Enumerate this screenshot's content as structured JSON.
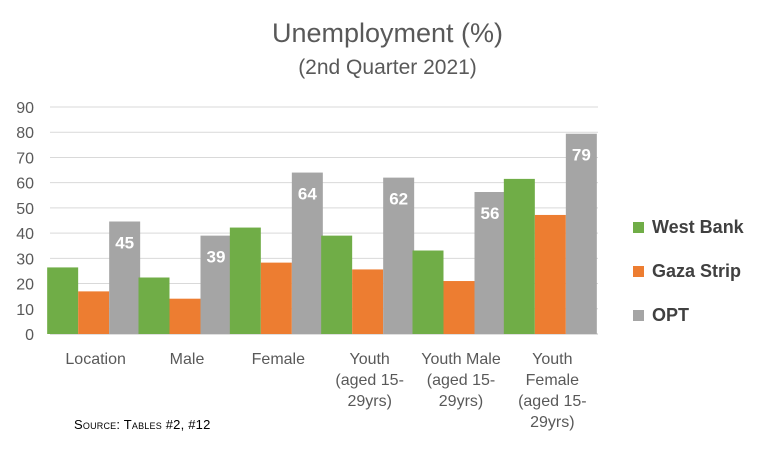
{
  "title": "Unemployment (%)",
  "subtitle": "(2nd Quarter 2021)",
  "source": "Source: Tables #2, #12",
  "colors": {
    "west_bank": "#70ad47",
    "gaza_strip": "#ed7d31",
    "opt": "#a5a5a5",
    "grid": "#d9d9d9",
    "axis_text": "#595959",
    "data_label": "#ffffff"
  },
  "legend": [
    {
      "label": "West Bank",
      "color": "#70ad47"
    },
    {
      "label": "Gaza Strip",
      "color": "#ed7d31"
    },
    {
      "label": "OPT",
      "color": "#a5a5a5"
    }
  ],
  "chart_data": {
    "type": "bar",
    "title": "Unemployment (%)",
    "subtitle": "(2nd Quarter 2021)",
    "xlabel": "",
    "ylabel": "",
    "ylim": [
      0,
      90
    ],
    "yticks": [
      0,
      10,
      20,
      30,
      40,
      50,
      60,
      70,
      80,
      90
    ],
    "grid": true,
    "legend_position": "right",
    "categories": [
      [
        "Location"
      ],
      [
        "Male"
      ],
      [
        "Female"
      ],
      [
        "Youth",
        "(aged 15-",
        "29yrs)"
      ],
      [
        "Youth Male",
        "(aged 15-",
        "29yrs)"
      ],
      [
        "Youth",
        "Female",
        "(aged 15-",
        "29yrs)"
      ]
    ],
    "series": [
      {
        "name": "West Bank",
        "color": "#70ad47",
        "values": [
          26.4,
          22.4,
          42.2,
          39.0,
          33.1,
          61.5
        ],
        "show_labels": false
      },
      {
        "name": "Gaza Strip",
        "color": "#ed7d31",
        "values": [
          16.9,
          14.0,
          28.3,
          25.6,
          21.0,
          47.2
        ],
        "show_labels": false
      },
      {
        "name": "OPT",
        "color": "#a5a5a5",
        "values": [
          44.6,
          39.0,
          64.0,
          62.0,
          56.3,
          79.4
        ],
        "show_labels": true,
        "labels": [
          "45",
          "39",
          "64",
          "62",
          "56",
          "79"
        ]
      }
    ]
  }
}
